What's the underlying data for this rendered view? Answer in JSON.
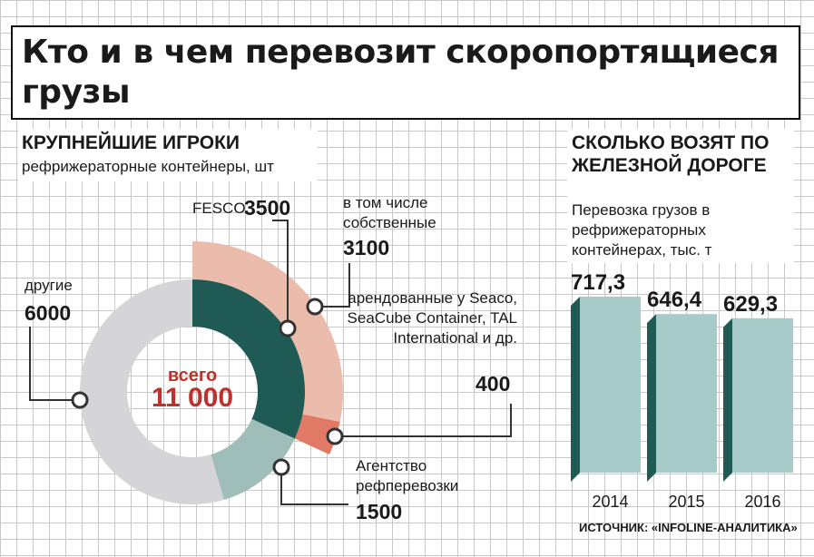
{
  "title": "Кто и в чем перевозит скоропортящиеся грузы",
  "left": {
    "heading": "КРУПНЕЙШИЕ ИГРОКИ",
    "subheading": "рефрижераторные контейнеры, шт",
    "total_label": "всего",
    "total_value": "11 000",
    "labels": {
      "fesco": "FESCO",
      "fesco_value": "3500",
      "own": "в том числе собственные",
      "own_value": "3100",
      "rented": "арендованные у Seaco, SeaCube Container, TAL International и др.",
      "rented_value": "400",
      "agent": "Агентство рефперевозки",
      "agent_value": "1500",
      "others": "другие",
      "others_value": "6000"
    }
  },
  "right": {
    "heading": "СКОЛЬКО ВОЗЯТ ПО ЖЕЛЕЗНОЙ ДОРОГЕ",
    "subheading": "Перевозка грузов в рефрижераторных контейнерах, тыс. т"
  },
  "source": "ИСТОЧНИК: «INFOLINE-АНАЛИТИКА»",
  "colors": {
    "fesco_own": "#1f5a55",
    "fesco_rented": "#e07a67",
    "fesco_outer": "#ebbcab",
    "agent": "#9fbdb9",
    "others": "#d5d5d7",
    "bar_front": "#a7cbc9",
    "bar_side": "#1f5a55",
    "total": "#c0312b"
  },
  "chart_data": [
    {
      "type": "pie",
      "title": "КРУПНЕЙШИЕ ИГРОКИ",
      "unit": "рефрижераторные контейнеры, шт",
      "total": 11000,
      "slices": [
        {
          "name": "FESCO",
          "value": 3500,
          "parts": [
            {
              "name": "в том числе собственные",
              "value": 3100
            },
            {
              "name": "арендованные у Seaco, SeaCube Container, TAL International и др.",
              "value": 400
            }
          ]
        },
        {
          "name": "Агентство рефперевозки",
          "value": 1500
        },
        {
          "name": "другие",
          "value": 6000
        }
      ]
    },
    {
      "type": "bar",
      "title": "СКОЛЬКО ВОЗЯТ ПО ЖЕЛЕЗНОЙ ДОРОГЕ",
      "ylabel": "Перевозка грузов в рефрижераторных контейнерах, тыс. т",
      "categories": [
        "2014",
        "2015",
        "2016"
      ],
      "values": [
        717.3,
        646.4,
        629.3
      ],
      "value_labels": [
        "717,3",
        "646,4",
        "629,3"
      ]
    }
  ]
}
